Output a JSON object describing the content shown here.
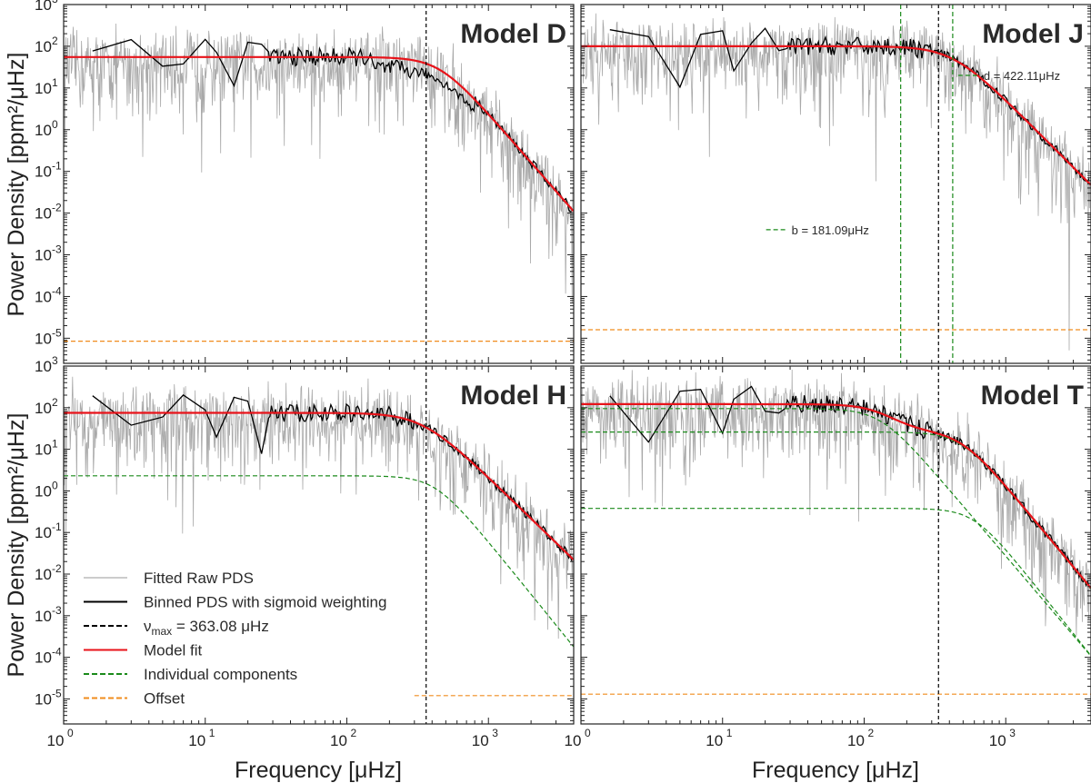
{
  "chart_data": {
    "type": "line",
    "figure": {
      "xlabel": "Frequency [μHz]",
      "ylabel": "Power Density [ppm²/μHz]",
      "xscale": "log",
      "yscale": "log",
      "xlim": [
        1,
        4000
      ],
      "ylim": [
        2.5e-06,
        1000
      ],
      "x_ticks": [
        1,
        10,
        100,
        1000
      ],
      "x_tick_labels": [
        "10",
        "10",
        "10",
        "10"
      ],
      "x_tick_exponents": [
        "0",
        "1",
        "2",
        "3"
      ],
      "y_ticks": [
        1e-05,
        0.0001,
        0.001,
        0.01,
        0.1,
        1,
        10,
        100,
        1000
      ],
      "y_tick_labels": [
        "10",
        "10",
        "10",
        "10",
        "10",
        "10",
        "10",
        "10",
        "10"
      ],
      "y_tick_exponents": [
        "-5",
        "-4",
        "-3",
        "-2",
        "-1",
        "0",
        "1",
        "2",
        "3"
      ],
      "colors": {
        "raw": "#9a9a9a",
        "binned": "#000000",
        "numax": "#000000",
        "model": "#e8131a",
        "component": "#1a8a1a",
        "offset": "#f08c1e"
      }
    },
    "legend": {
      "location": "lower-left of Model H panel",
      "entries": [
        {
          "label": "Fitted Raw PDS",
          "style": "raw"
        },
        {
          "label": "Binned PDS with sigmoid weighting",
          "style": "binned"
        },
        {
          "label": "ν",
          "sub": "max",
          "suffix": " = 363.08 μHz",
          "style": "numax"
        },
        {
          "label": "Model fit",
          "style": "model"
        },
        {
          "label": "Individual components",
          "style": "component"
        },
        {
          "label": "Offset",
          "style": "offset"
        }
      ]
    },
    "panels": [
      {
        "title": "Model D",
        "numax": 363.08,
        "offset": 8.5e-06,
        "model": {
          "flat_level": 55,
          "knee": 450,
          "slope": 3.9
        },
        "components": [],
        "annotations": []
      },
      {
        "title": "Model J",
        "numax": 335,
        "offset": 1.6e-05,
        "model": {
          "flat_level": 100,
          "knee": 420,
          "slope": 3.4
        },
        "components": [],
        "vlines": [
          {
            "x": 181.09,
            "label": "b = 181.09μHz",
            "label_pos": "left"
          },
          {
            "x": 422.11,
            "label": "d = 422.11μHz",
            "label_pos": "right"
          }
        ],
        "annotations": [
          {
            "text": "b = 181.09μHz"
          },
          {
            "text": "d = 422.11μHz"
          }
        ]
      },
      {
        "title": "Model H",
        "numax": 363.08,
        "offset": 1.2e-05,
        "offset_xstart": 300,
        "model": {
          "flat_level": 75,
          "knee": 340,
          "slope": 3.3
        },
        "components": [
          {
            "level": 2.3,
            "knee": 420,
            "slope": 4.2
          }
        ],
        "annotations": []
      },
      {
        "title": "Model T",
        "numax": 335,
        "offset": 1.3e-05,
        "model": null,
        "components": [
          {
            "level": 95,
            "knee": 130,
            "slope": 4.0
          },
          {
            "level": 26,
            "knee": 480,
            "slope": 4.1
          },
          {
            "level": 0.38,
            "knee": 600,
            "slope": 4.3
          }
        ],
        "annotations": []
      }
    ]
  }
}
